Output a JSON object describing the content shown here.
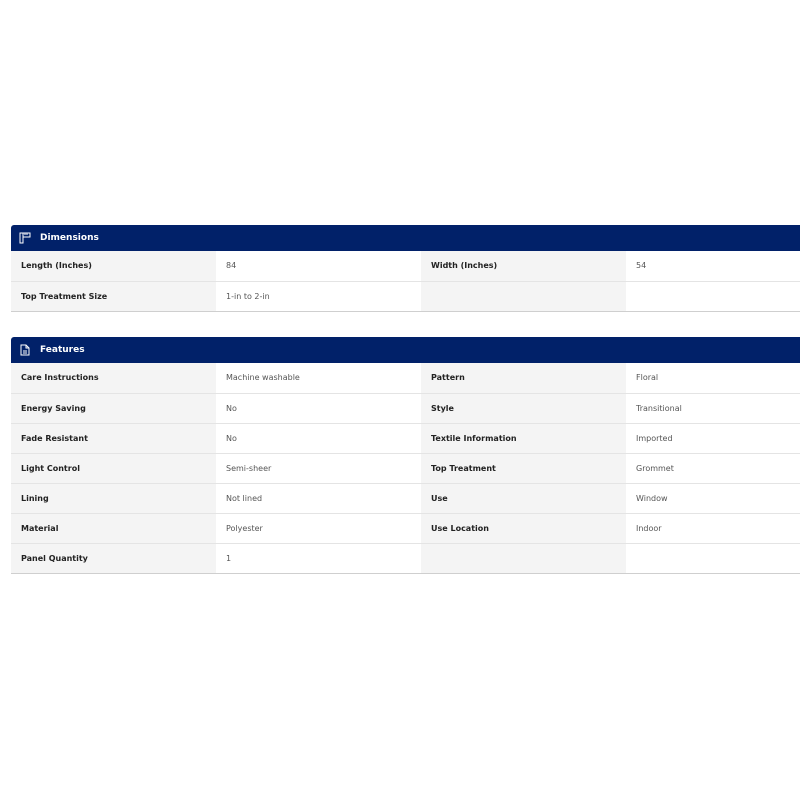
{
  "dimensions": {
    "title": "Dimensions",
    "icon": "ruler-icon",
    "rows": [
      [
        {
          "k": "Length (Inches)",
          "v": "84"
        },
        {
          "k": "Width (Inches)",
          "v": "54"
        }
      ],
      [
        {
          "k": "Top Treatment Size",
          "v": "1-in to 2-in"
        },
        {
          "k": "",
          "v": ""
        }
      ]
    ]
  },
  "features": {
    "title": "Features",
    "icon": "document-icon",
    "rows": [
      [
        {
          "k": "Care Instructions",
          "v": "Machine washable"
        },
        {
          "k": "Pattern",
          "v": "Floral"
        }
      ],
      [
        {
          "k": "Energy Saving",
          "v": "No"
        },
        {
          "k": "Style",
          "v": "Transitional"
        }
      ],
      [
        {
          "k": "Fade Resistant",
          "v": "No"
        },
        {
          "k": "Textile Information",
          "v": "Imported"
        }
      ],
      [
        {
          "k": "Light Control",
          "v": "Semi-sheer"
        },
        {
          "k": "Top Treatment",
          "v": "Grommet"
        }
      ],
      [
        {
          "k": "Lining",
          "v": "Not lined"
        },
        {
          "k": "Use",
          "v": "Window"
        }
      ],
      [
        {
          "k": "Material",
          "v": "Polyester"
        },
        {
          "k": "Use Location",
          "v": "Indoor"
        }
      ],
      [
        {
          "k": "Panel Quantity",
          "v": "1"
        },
        {
          "k": "",
          "v": ""
        }
      ]
    ]
  },
  "colors": {
    "header": "#012169"
  }
}
